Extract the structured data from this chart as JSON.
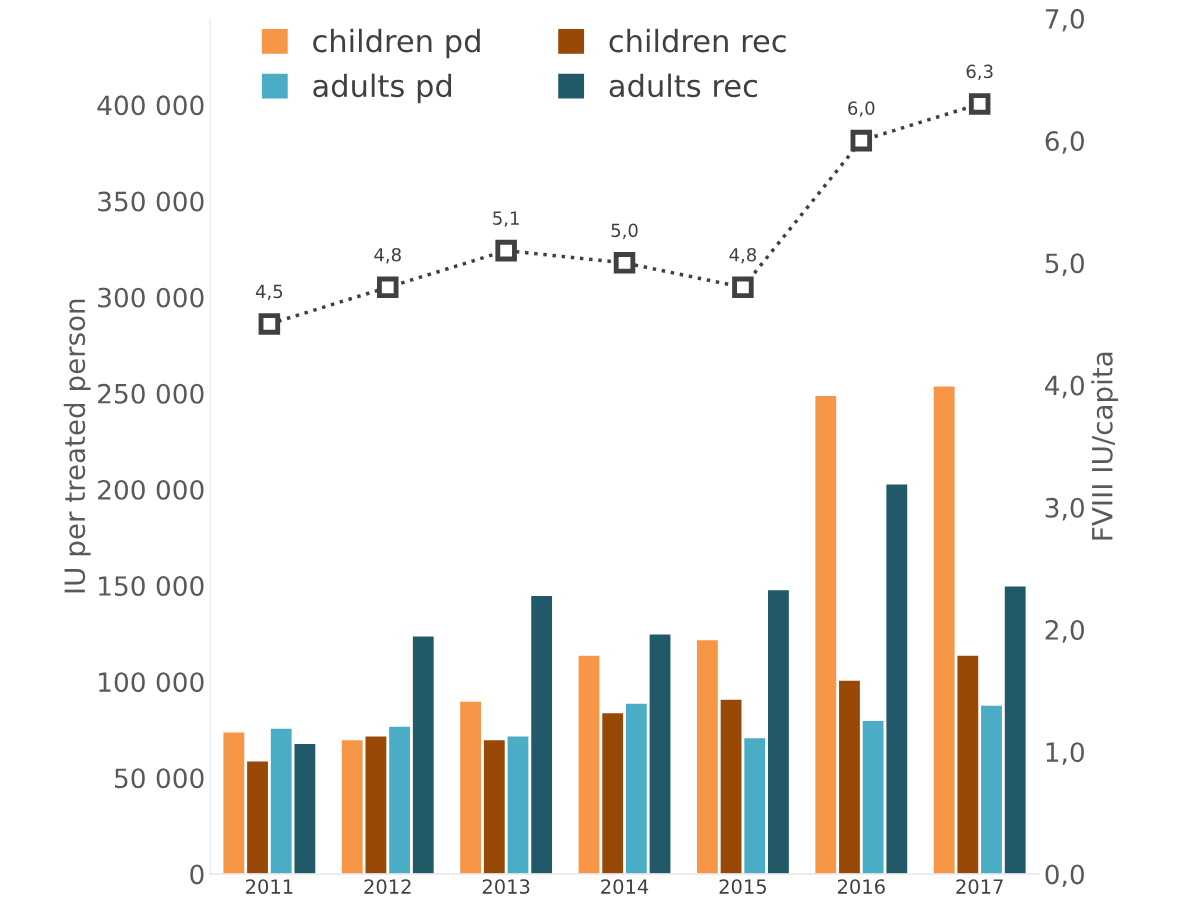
{
  "chart_data": {
    "type": "bar",
    "ylabel": "IU per treated person",
    "y2label": "FVIII IU/capita",
    "categories": [
      "2011",
      "2012",
      "2013",
      "2014",
      "2015",
      "2016",
      "2017"
    ],
    "series": [
      {
        "name": "children pd",
        "color": "#f79646",
        "values": [
          74000,
          70000,
          90000,
          114000,
          122000,
          249000,
          254000
        ]
      },
      {
        "name": "children rec",
        "color": "#984807",
        "values": [
          59000,
          72000,
          70000,
          84000,
          91000,
          101000,
          114000
        ]
      },
      {
        "name": "adults pd",
        "color": "#4bacc6",
        "values": [
          76000,
          77000,
          72000,
          89000,
          71000,
          80000,
          88000
        ]
      },
      {
        "name": "adults rec",
        "color": "#215968",
        "values": [
          68000,
          124000,
          145000,
          125000,
          148000,
          203000,
          150000
        ]
      },
      {
        "type": "line",
        "axis": "y2",
        "color": "#404040",
        "marker": "square",
        "line_style": "dotted",
        "values": [
          4.5,
          4.8,
          5.1,
          5.0,
          4.8,
          6.0,
          6.3
        ],
        "value_labels": [
          "4,5",
          "4,8",
          "5,1",
          "5,0",
          "4,8",
          "6,0",
          "6,3"
        ]
      }
    ],
    "ylim": [
      0,
      445000
    ],
    "yticks": [
      0,
      {
        "value": 50000,
        "label": "50 000"
      },
      {
        "value": 100000,
        "label": "100 000"
      },
      {
        "value": 150000,
        "label": "150 000"
      },
      {
        "value": 200000,
        "label": "200 000"
      },
      {
        "value": 250000,
        "label": "250 000"
      },
      {
        "value": 300000,
        "label": "300 000"
      },
      {
        "value": 350000,
        "label": "350 000"
      },
      {
        "value": 400000,
        "label": "400 000"
      }
    ],
    "y2lim": [
      0,
      7
    ],
    "y2ticks": [
      {
        "value": 0,
        "label": "0,0"
      },
      {
        "value": 1,
        "label": "1,0"
      },
      {
        "value": 2,
        "label": "2,0"
      },
      {
        "value": 3,
        "label": "3,0"
      },
      {
        "value": 4,
        "label": "4,0"
      },
      {
        "value": 5,
        "label": "5,0"
      },
      {
        "value": 6,
        "label": "6,0"
      },
      {
        "value": 7,
        "label": "7,0"
      }
    ],
    "grid": false,
    "legend": "top"
  }
}
